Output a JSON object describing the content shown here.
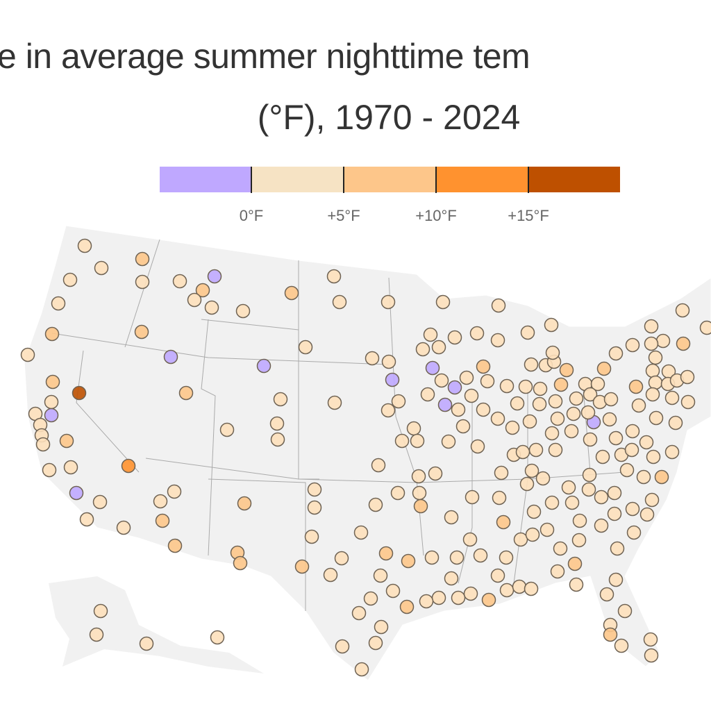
{
  "title": {
    "line1": "e in average summer nighttime tem",
    "line2": "(°F), 1970 - 2024"
  },
  "legend": {
    "bins": [
      {
        "label": "< 0°F",
        "color": "#bfa8ff"
      },
      {
        "label": "0–5°F",
        "color": "#f6e3c4"
      },
      {
        "label": "5–10°F",
        "color": "#fdc68a"
      },
      {
        "label": "10–15°F",
        "color": "#ff922f"
      },
      {
        "label": "> 15°F",
        "color": "#be5000"
      }
    ],
    "ticks": [
      "0°F",
      "+5°F",
      "+10°F",
      "+15°F"
    ]
  },
  "stations_bins": "see script order"
}
